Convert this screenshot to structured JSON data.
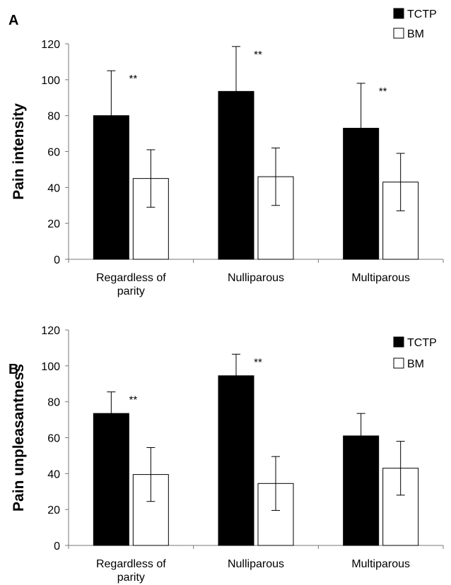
{
  "chart_data": [
    {
      "type": "bar",
      "panel": "A",
      "ylabel": "Pain intensity",
      "ylim": [
        0,
        120
      ],
      "yticks": [
        "0",
        "20",
        "40",
        "60",
        "80",
        "100",
        "120"
      ],
      "categories": [
        [
          "Regardless of",
          "parity"
        ],
        [
          "Nulliparous"
        ],
        [
          "Multiparous"
        ]
      ],
      "series": [
        {
          "name": "TCTP",
          "color": "#000000",
          "values": [
            80,
            93.5,
            73
          ],
          "errors": [
            25,
            25,
            25
          ]
        },
        {
          "name": "BM",
          "color": "#ffffff",
          "values": [
            45,
            46,
            43
          ],
          "errors": [
            16,
            16,
            16
          ]
        }
      ],
      "significance": [
        "**",
        "**",
        "**"
      ],
      "legend": "top-right",
      "grid": false
    },
    {
      "type": "bar",
      "panel": "B",
      "ylabel": "Pain unpleasantness",
      "ylim": [
        0,
        120
      ],
      "yticks": [
        "0",
        "20",
        "40",
        "60",
        "80",
        "100",
        "120"
      ],
      "categories": [
        [
          "Regardless of",
          "parity"
        ],
        [
          "Nulliparous"
        ],
        [
          "Multiparous"
        ]
      ],
      "series": [
        {
          "name": "TCTP",
          "color": "#000000",
          "values": [
            73.5,
            94.5,
            61
          ],
          "errors": [
            12,
            12,
            12.5
          ]
        },
        {
          "name": "BM",
          "color": "#ffffff",
          "values": [
            39.5,
            34.5,
            43
          ],
          "errors": [
            15,
            15,
            15
          ]
        }
      ],
      "significance": [
        "**",
        "**",
        ""
      ],
      "legend": "top-right",
      "grid": false
    }
  ]
}
